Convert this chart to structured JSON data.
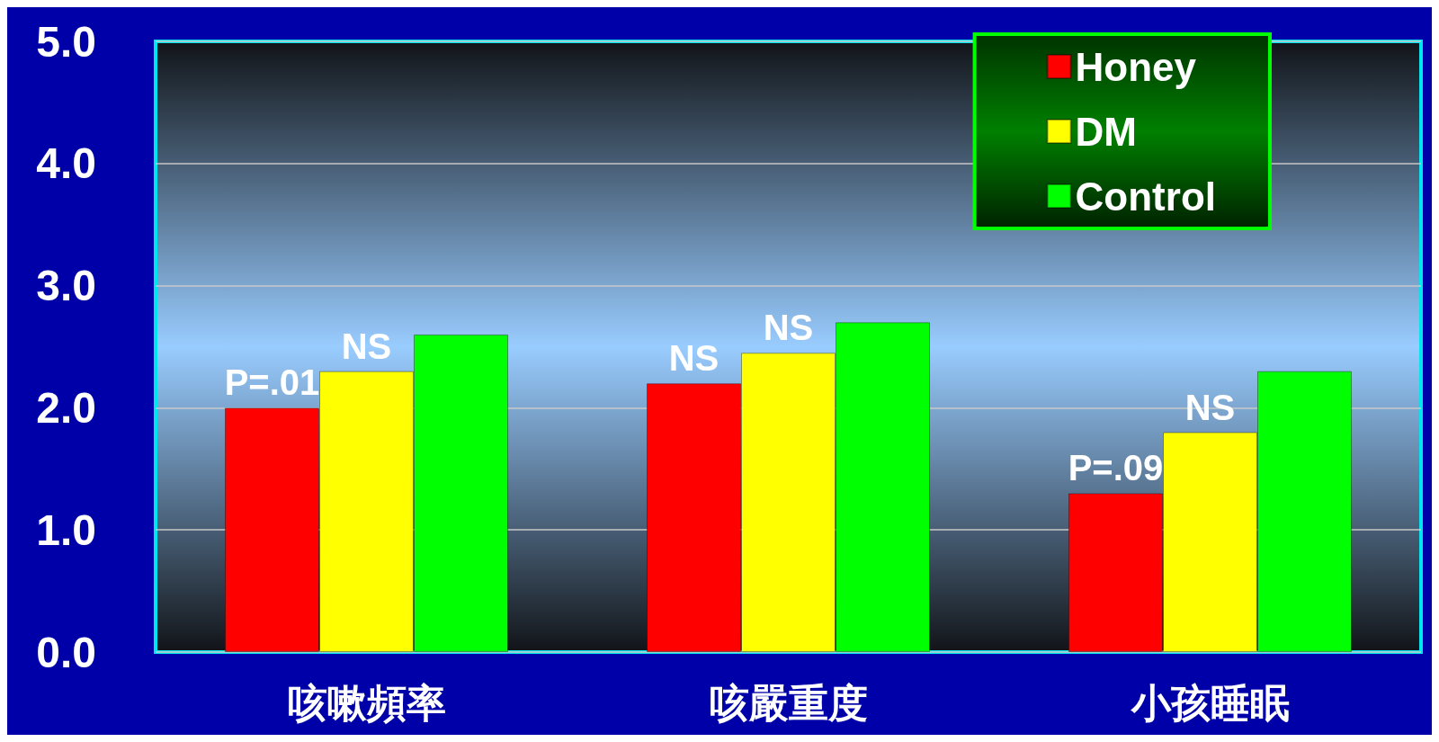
{
  "chart_data": {
    "type": "bar",
    "categories": [
      "咳嗽頻率",
      "咳嚴重度",
      "小孩睡眠"
    ],
    "series": [
      {
        "name": "Honey",
        "color": "#ff0000",
        "values": [
          2.0,
          2.2,
          1.3
        ]
      },
      {
        "name": "DM",
        "color": "#ffff00",
        "values": [
          2.3,
          2.45,
          1.8
        ]
      },
      {
        "name": "Control",
        "color": "#00ff00",
        "values": [
          2.6,
          2.7,
          2.3
        ]
      }
    ],
    "ylim": [
      0,
      5
    ],
    "yticks": [
      {
        "value": 0,
        "label": "0.0"
      },
      {
        "value": 1,
        "label": "1.0"
      },
      {
        "value": 2,
        "label": "2.0"
      },
      {
        "value": 3,
        "label": "3.0"
      },
      {
        "value": 4,
        "label": "4.0"
      },
      {
        "value": 5,
        "label": "5.0"
      }
    ],
    "grid": "y",
    "legend": "top right",
    "annotations": [
      "P=.01",
      "NS",
      "NS",
      "NS",
      "P=.09",
      "NS"
    ]
  }
}
